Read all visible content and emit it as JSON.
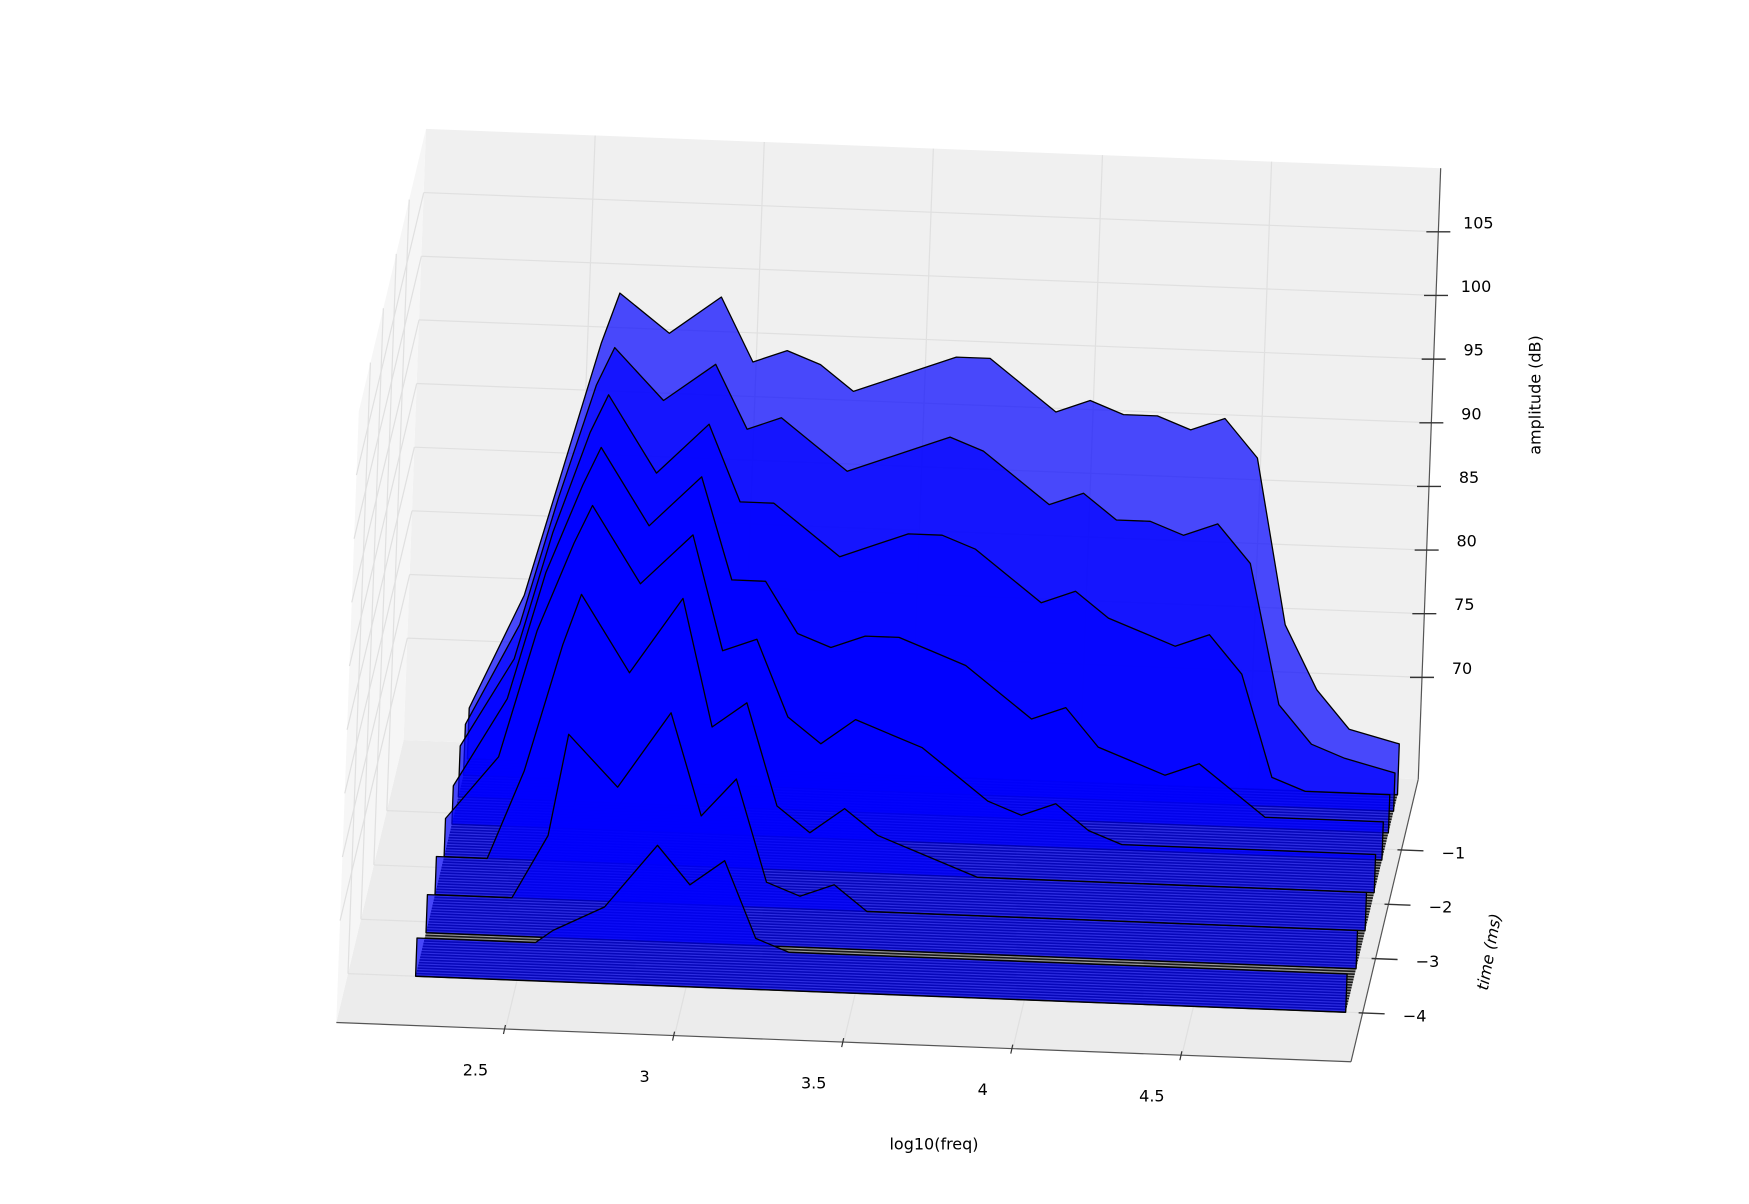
{
  "chart_data": {
    "type": "waterfall3d",
    "xlabel": "log10(freq)",
    "ylabel": "time (ms)",
    "zlabel": "amplitude (dB)",
    "xlim": [
      2.0,
      5.0
    ],
    "ylim": [
      -4.9,
      0.3
    ],
    "zlim": [
      62,
      110
    ],
    "xticks": [
      2.5,
      3.0,
      3.5,
      4.0,
      4.5
    ],
    "yticks": [
      {
        "value": -1,
        "label": "−1"
      },
      {
        "value": -2,
        "label": "−2"
      },
      {
        "value": -3,
        "label": "−3"
      },
      {
        "value": -4,
        "label": "−4"
      }
    ],
    "zticks": [
      70,
      75,
      80,
      85,
      90,
      95,
      100,
      105
    ],
    "grid": true,
    "color": "#0000ff",
    "alpha": 0.7,
    "edgecolor": "#000000",
    "x": [
      2.2,
      2.35,
      2.45,
      2.55,
      2.6,
      2.75,
      2.9,
      3.0,
      3.1,
      3.2,
      3.3,
      3.4,
      3.5,
      3.6,
      3.7,
      3.8,
      3.9,
      4.0,
      4.1,
      4.2,
      4.3,
      4.4,
      4.5,
      4.6,
      4.7,
      4.8,
      4.95
    ],
    "series": [
      {
        "t": 0,
        "values": [
          66,
          75,
          85,
          95,
          99,
          96,
          99,
          94,
          95,
          94,
          92,
          93,
          94,
          95,
          95,
          93,
          91,
          92,
          91,
          91,
          90,
          91,
          88,
          75,
          70,
          67,
          66
        ]
      },
      {
        "t": -0.3,
        "values": [
          66,
          74,
          84,
          93,
          96,
          92,
          95,
          90,
          91,
          89,
          87,
          88,
          89,
          90,
          89,
          87,
          85,
          86,
          84,
          84,
          83,
          84,
          81,
          70,
          67,
          66,
          65
        ]
      },
      {
        "t": -0.7,
        "values": [
          66,
          73,
          83,
          91,
          94,
          88,
          92,
          86,
          86,
          84,
          82,
          83,
          84,
          84,
          83,
          81,
          79,
          80,
          78,
          77,
          76,
          77,
          74,
          66,
          65,
          65,
          65
        ]
      },
      {
        "t": -1.2,
        "values": [
          65,
          72,
          82,
          89,
          92,
          86,
          90,
          82,
          82,
          78,
          77,
          78,
          78,
          77,
          76,
          74,
          72,
          73,
          70,
          69,
          68,
          69,
          67,
          65,
          65,
          65,
          65
        ]
      },
      {
        "t": -1.8,
        "values": [
          65,
          70,
          80,
          87,
          90,
          84,
          88,
          79,
          80,
          74,
          72,
          74,
          73,
          72,
          70,
          68,
          67,
          68,
          66,
          65,
          65,
          65,
          65,
          65,
          65,
          65,
          65
        ]
      },
      {
        "t": -2.5,
        "values": [
          65,
          65,
          72,
          82,
          86,
          80,
          86,
          76,
          78,
          70,
          68,
          70,
          68,
          67,
          66,
          65,
          65,
          65,
          65,
          65,
          65,
          65,
          65,
          65,
          65,
          65,
          65
        ]
      },
      {
        "t": -3.2,
        "values": [
          65,
          65,
          65,
          70,
          78,
          74,
          80,
          72,
          75,
          67,
          66,
          67,
          65,
          65,
          65,
          65,
          65,
          65,
          65,
          65,
          65,
          65,
          65,
          65,
          65,
          65,
          65
        ]
      },
      {
        "t": -4.0,
        "values": [
          65,
          65,
          65,
          65,
          66,
          68,
          73,
          70,
          72,
          66,
          65,
          65,
          65,
          65,
          65,
          65,
          65,
          65,
          65,
          65,
          65,
          65,
          65,
          65,
          65,
          65,
          65
        ]
      }
    ]
  }
}
